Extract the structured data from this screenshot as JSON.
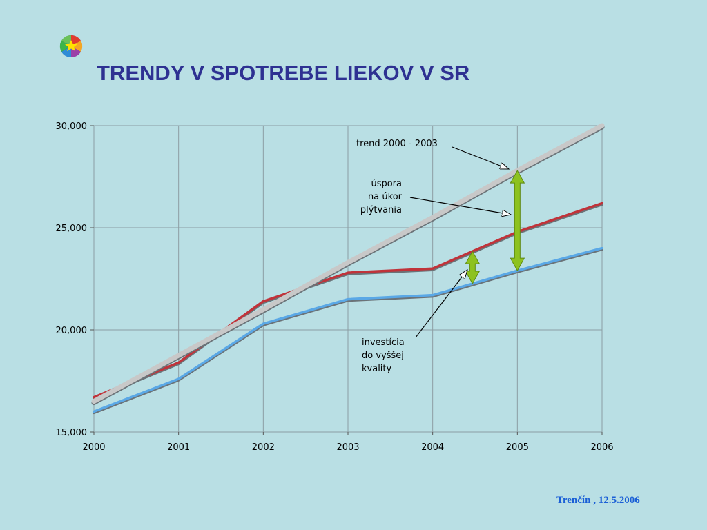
{
  "slide": {
    "title": "TRENDY V SPOTREBE LIEKOV V SR",
    "footer": "Trenčín , 12.5.2006"
  },
  "chart_data": {
    "type": "line",
    "x": [
      2000,
      2001,
      2002,
      2003,
      2004,
      2005,
      2006
    ],
    "ylim": [
      15000,
      30000
    ],
    "yticks": [
      "15,000",
      "20,000",
      "25,000",
      "30,000"
    ],
    "xticks": [
      "2000",
      "2001",
      "2002",
      "2003",
      "2004",
      "2005",
      "2006"
    ],
    "grid": true,
    "series": [
      {
        "values": [
          16700,
          18400,
          21400,
          22800,
          23000,
          24800,
          26200
        ],
        "color": "#c0333a"
      },
      {
        "values": [
          16000,
          17600,
          20300,
          21500,
          21700,
          22900,
          24000
        ],
        "color": "#5aa8e6"
      },
      {
        "values": [
          16500,
          18750,
          21000,
          23300,
          25500,
          27800,
          30000
        ],
        "color": "#c8c8c8"
      }
    ],
    "annotations": [
      {
        "lines": [
          "trend 2000 - 2003"
        ]
      },
      {
        "lines": [
          "úspora",
          "na úkor",
          "plýtvania"
        ]
      },
      {
        "lines": [
          "investícia",
          "do vyššej",
          "kvality"
        ]
      }
    ],
    "arrow_color": "#8dc21f"
  }
}
